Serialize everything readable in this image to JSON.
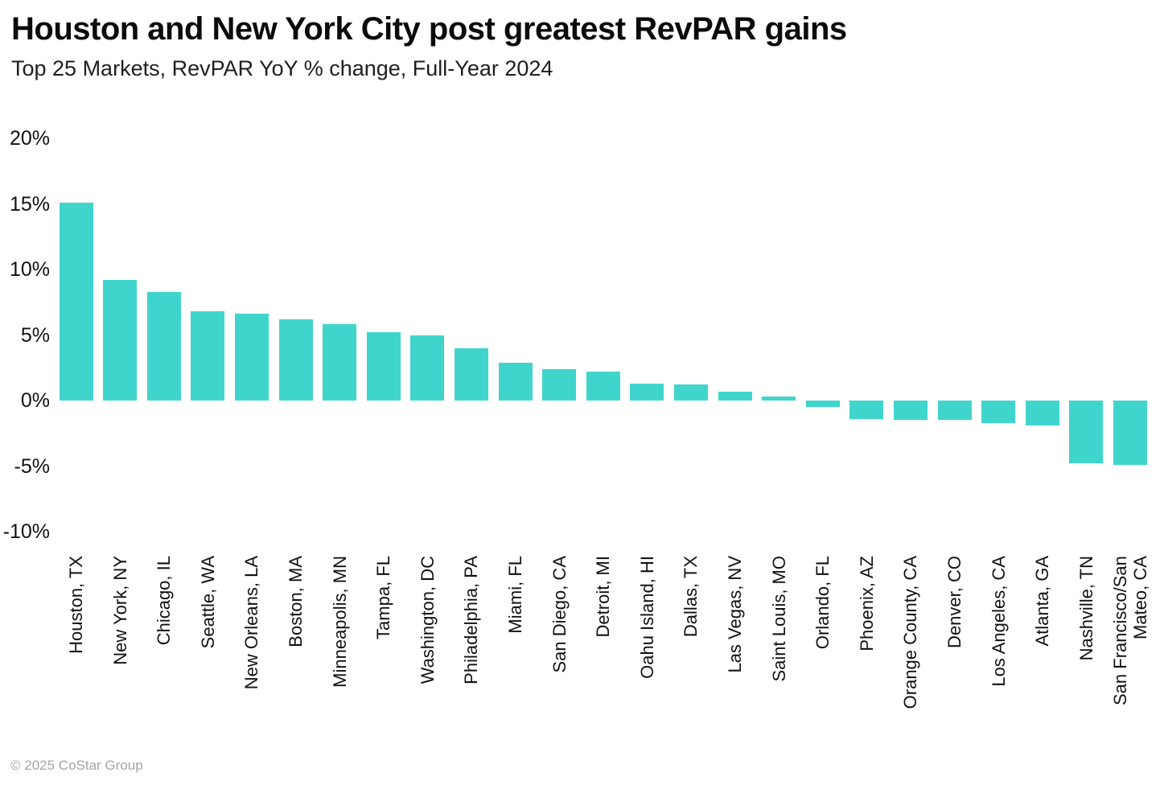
{
  "header": {
    "title": "Houston and New York City post greatest RevPAR gains",
    "subtitle": "Top 25 Markets, RevPAR YoY % change, Full-Year 2024"
  },
  "footer": {
    "copyright": "© 2025 CoStar Group"
  },
  "chart_data": {
    "type": "bar",
    "title": "Houston and New York City post greatest RevPAR gains",
    "subtitle": "Top 25 Markets, RevPAR YoY % change, Full-Year 2024",
    "xlabel": "",
    "ylabel": "RevPAR YoY % change",
    "unit": "%",
    "ylim": [
      -10,
      20
    ],
    "yticks": [
      20,
      15,
      10,
      5,
      0,
      -5,
      -10
    ],
    "grid": false,
    "legend_position": "none",
    "bar_color": "#40D5CC",
    "categories": [
      "Houston, TX",
      "New York, NY",
      "Chicago, IL",
      "Seattle, WA",
      "New Orleans, LA",
      "Boston, MA",
      "Minneapolis, MN",
      "Tampa, FL",
      "Washington, DC",
      "Philadelphia, PA",
      "Miami, FL",
      "San Diego, CA",
      "Detroit, MI",
      "Oahu Island, HI",
      "Dallas, TX",
      "Las Vegas, NV",
      "Saint Louis, MO",
      "Orlando, FL",
      "Phoenix, AZ",
      "Orange County, CA",
      "Denver, CO",
      "Los Angeles, CA",
      "Atlanta, GA",
      "Nashville, TN",
      "San Francisco/San Mateo, CA"
    ],
    "values": [
      15.1,
      9.2,
      8.3,
      6.8,
      6.6,
      6.2,
      5.8,
      5.2,
      5.0,
      4.0,
      2.9,
      2.4,
      2.2,
      1.3,
      1.2,
      0.7,
      0.3,
      -0.5,
      -1.4,
      -1.5,
      -1.5,
      -1.7,
      -1.9,
      -4.8,
      -4.9
    ]
  }
}
